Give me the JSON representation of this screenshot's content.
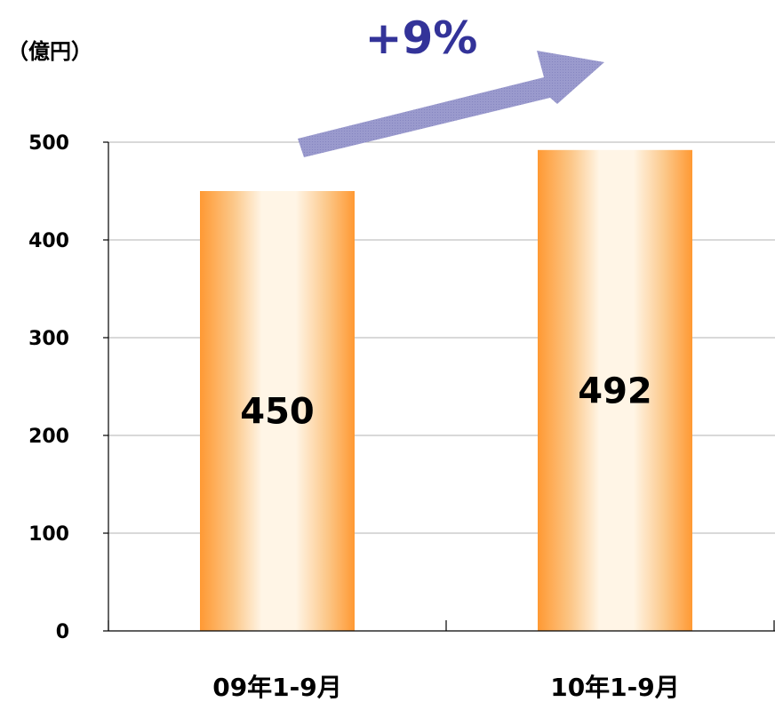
{
  "chart_data": {
    "type": "bar",
    "unit_label": "（億円）",
    "categories": [
      "09年1-9月",
      "10年1-9月"
    ],
    "values": [
      450,
      492
    ],
    "data_labels": [
      "450",
      "492"
    ],
    "ylim": [
      0,
      500
    ],
    "yticks": [
      0,
      100,
      200,
      300,
      400,
      500
    ],
    "grid": true,
    "annotation": {
      "text": "+9%",
      "shape": "up-right-arrow",
      "text_color": "#333399",
      "arrow_color": "#9999cc"
    },
    "colors": {
      "bar_edge": "#ff9933",
      "bar_center": "#fff5e6",
      "grid": "#b3b3b3",
      "axis": "#000000"
    }
  }
}
